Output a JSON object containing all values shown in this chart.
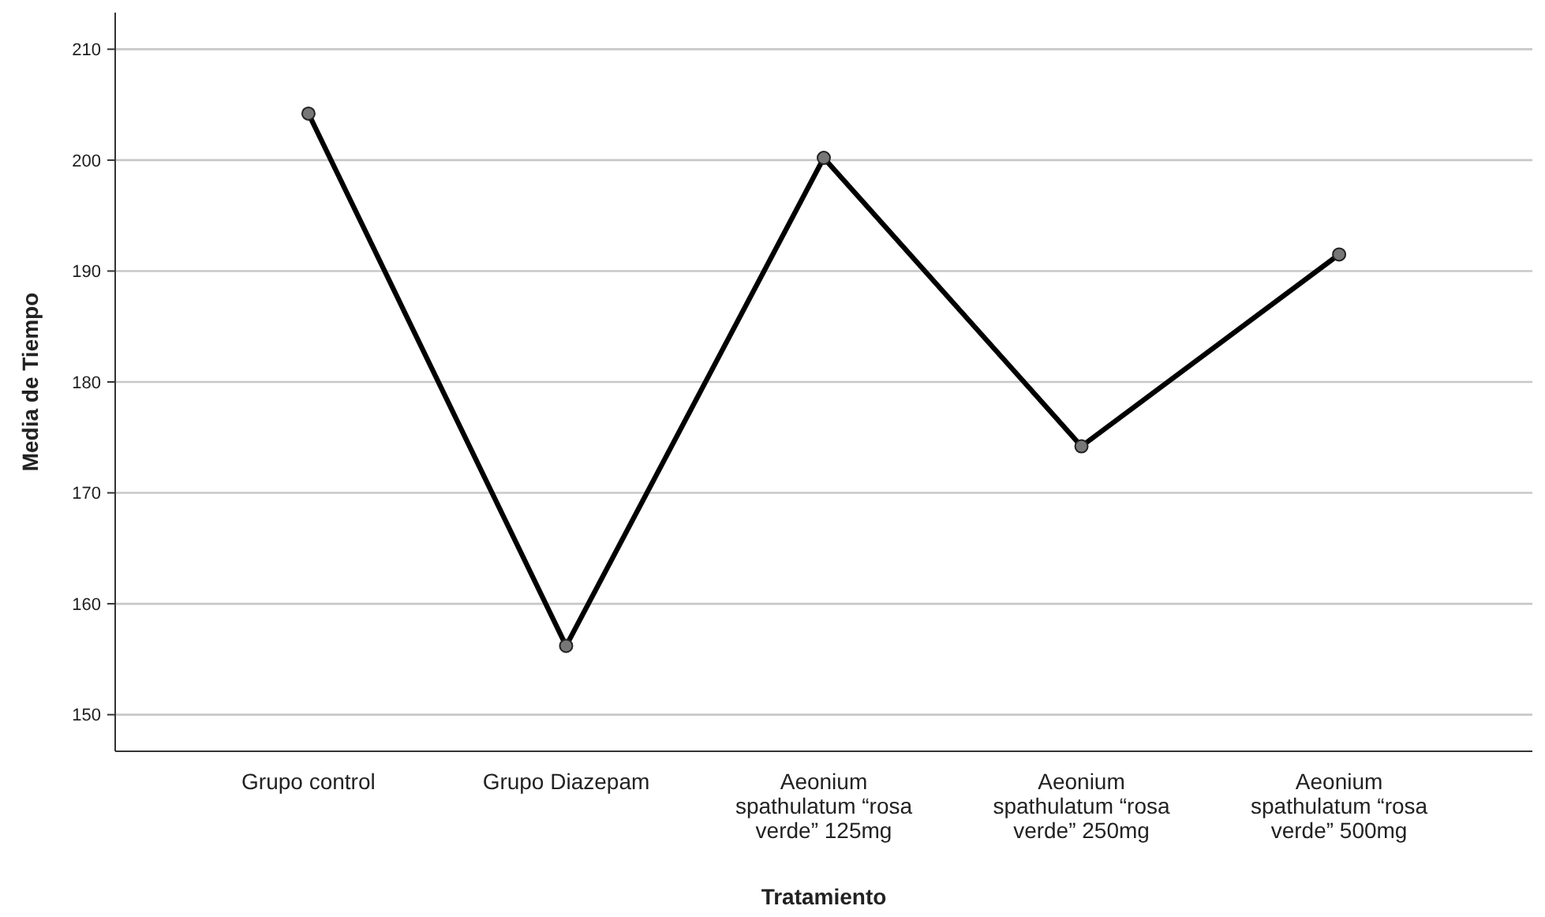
{
  "chart_data": {
    "type": "line",
    "xlabel": "Tratamiento",
    "ylabel": "Media de Tiempo",
    "categories": [
      "Grupo control",
      "Grupo Diazepam",
      "Aeonium spathulatum “rosa verde”  125mg",
      "Aeonium spathulatum “rosa verde” 250mg",
      "Aeonium spathulatum “rosa verde” 500mg"
    ],
    "series": [
      {
        "color": "#000000",
        "values": [
          204.2,
          156.2,
          200.2,
          174.2,
          191.5
        ]
      }
    ],
    "ylim": [
      146.7,
      213.3
    ],
    "yticks": [
      150,
      160,
      170,
      180,
      190,
      200,
      210
    ],
    "grid": "y",
    "marker": "circle",
    "line_style": "solid"
  }
}
